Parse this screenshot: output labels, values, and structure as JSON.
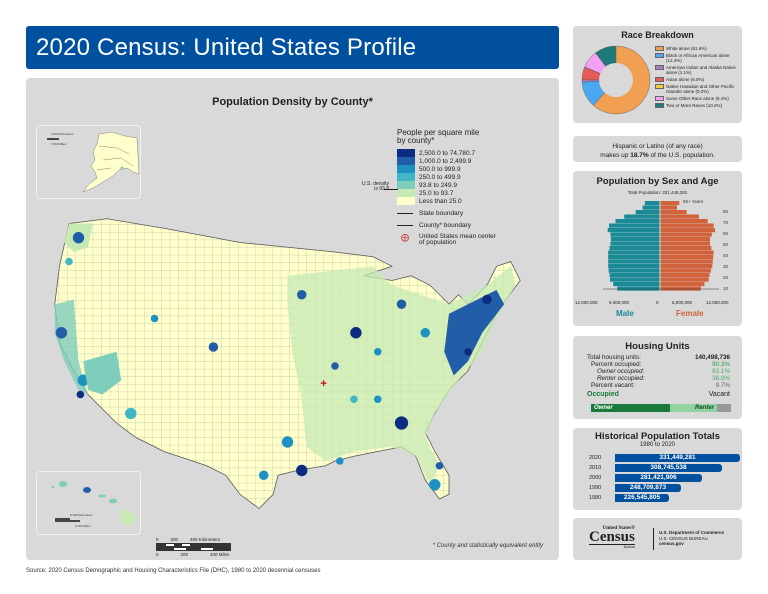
{
  "header": {
    "title": "2020 Census: United States Profile"
  },
  "map": {
    "title": "Population Density by County*",
    "legend": {
      "heading_line1": "People per square mile",
      "heading_line2": "by county*",
      "classes": [
        {
          "label": "2,500.0 to 74,780.7",
          "color": "#0c2c84"
        },
        {
          "label": "1,000.0 to 2,499.9",
          "color": "#225ea8"
        },
        {
          "label": "500.0 to 999.9",
          "color": "#1d91c0"
        },
        {
          "label": "250.0 to 499.9",
          "color": "#41b6c4"
        },
        {
          "label": "93.8 to 249.9",
          "color": "#7fcdbb"
        },
        {
          "label": "25.0 to 93.7",
          "color": "#c7e9b4"
        },
        {
          "label": "Less than 25.0",
          "color": "#ffffcc"
        }
      ],
      "us_density_line1": "U.S. density",
      "us_density_line2": "is 93.8",
      "state_boundary": "State boundary",
      "county_boundary": "County* boundary",
      "mean_center_line1": "United States mean center",
      "mean_center_line2": "of population"
    },
    "alaska_scale": {
      "km": "0   500 Kilometers",
      "mi": "0   500 Miles"
    },
    "hawaii_scale": {
      "km": "0   100 Kilometers",
      "mi": "0   100 Miles"
    },
    "main_scale": {
      "km_labels": [
        "0",
        "200",
        "400 Kilometers"
      ],
      "mi_labels": [
        "0",
        "200",
        "400 Miles"
      ]
    },
    "footnote": "* County and statistically equivalent entity"
  },
  "source": "Source: 2020 Census Demographic and Housing Characteristics File (DHC), 1980 to 2020 decennial censuses",
  "race": {
    "title": "Race Breakdown",
    "items": [
      {
        "label": "White alone (61.6%)",
        "pct": 61.6,
        "color": "#f0a050"
      },
      {
        "label": "Black or African American alone (12.4%)",
        "pct": 12.4,
        "color": "#4aa8f0"
      },
      {
        "label": "American Indian and Alaska Native alone (1.1%)",
        "pct": 1.1,
        "color": "#a080c0"
      },
      {
        "label": "Asian alone (6.0%)",
        "pct": 6.0,
        "color": "#e85a5a"
      },
      {
        "label": "Native Hawaiian and Other Pacific Islander alone (0.2%)",
        "pct": 0.2,
        "color": "#f0d040"
      },
      {
        "label": "Some Other Race alone (8.4%)",
        "pct": 8.4,
        "color": "#f4a0f0"
      },
      {
        "label": "Two or More Races (10.2%)",
        "pct": 10.2,
        "color": "#1e7a78"
      }
    ]
  },
  "hispanic": {
    "line1": "Hispanic or Latino (of any race)",
    "pre": "makes up ",
    "pct": "18.7%",
    "post": " of the U.S. population."
  },
  "pyramid": {
    "title": "Population by Sex and Age",
    "total": "Total Population: 331,449,281",
    "top_label": "85+ Years",
    "age_labels": [
      "80",
      "70",
      "60",
      "50",
      "40",
      "30",
      "20",
      "10"
    ],
    "x_labels": [
      "12,000,000",
      "6,000,000",
      "0",
      "6,000,000",
      "12,000,000"
    ],
    "male_label": "Male",
    "female_label": "Female",
    "male_color": "#1a8a96",
    "female_color": "#d0623c",
    "male": [
      3.2,
      3.7,
      5.2,
      7.7,
      9.6,
      11.0,
      11.3,
      10.7,
      10.6,
      10.7,
      10.9,
      11.2,
      11.2,
      11.2,
      11.2,
      11.1,
      10.9,
      10.8,
      10.1,
      9.2
    ],
    "female": [
      4.1,
      3.6,
      5.7,
      8.4,
      10.3,
      11.6,
      11.9,
      11.2,
      10.8,
      10.8,
      11.1,
      11.6,
      11.5,
      11.4,
      11.3,
      11.0,
      10.7,
      10.5,
      9.6,
      8.8
    ]
  },
  "housing": {
    "title": "Housing Units",
    "rows": [
      {
        "label": "Total housing units:",
        "value": "140,498,736"
      },
      {
        "label": "Percent occupied:",
        "value": "90.3%"
      },
      {
        "label": "Owner occupied:",
        "value": "63.1%"
      },
      {
        "label": "Renter occupied:",
        "value": "36.9%"
      },
      {
        "label": "Percent vacant:",
        "value": "9.7%"
      }
    ],
    "occupied_label": "Occupied",
    "vacant_label": "Vacant",
    "owner_label": "Owner",
    "renter_label": "Renter"
  },
  "history": {
    "title": "Historical Population Totals",
    "subtitle": "1980 to 2020",
    "rows": [
      {
        "year": "2020",
        "value": "331,449,281",
        "num": 331449281
      },
      {
        "year": "2010",
        "value": "308,745,538",
        "num": 308745538
      },
      {
        "year": "2000",
        "value": "281,421,906",
        "num": 281421906
      },
      {
        "year": "1990",
        "value": "248,709,873",
        "num": 248709873
      },
      {
        "year": "1980",
        "value": "226,545,805",
        "num": 226545805
      }
    ]
  },
  "logo": {
    "line1": "United States®",
    "word": "Census",
    "bureau": "Bureau",
    "dept1": "U.S. Department of Commerce",
    "dept2": "U.S. CENSUS BUREAU",
    "dept3": "census.gov"
  }
}
